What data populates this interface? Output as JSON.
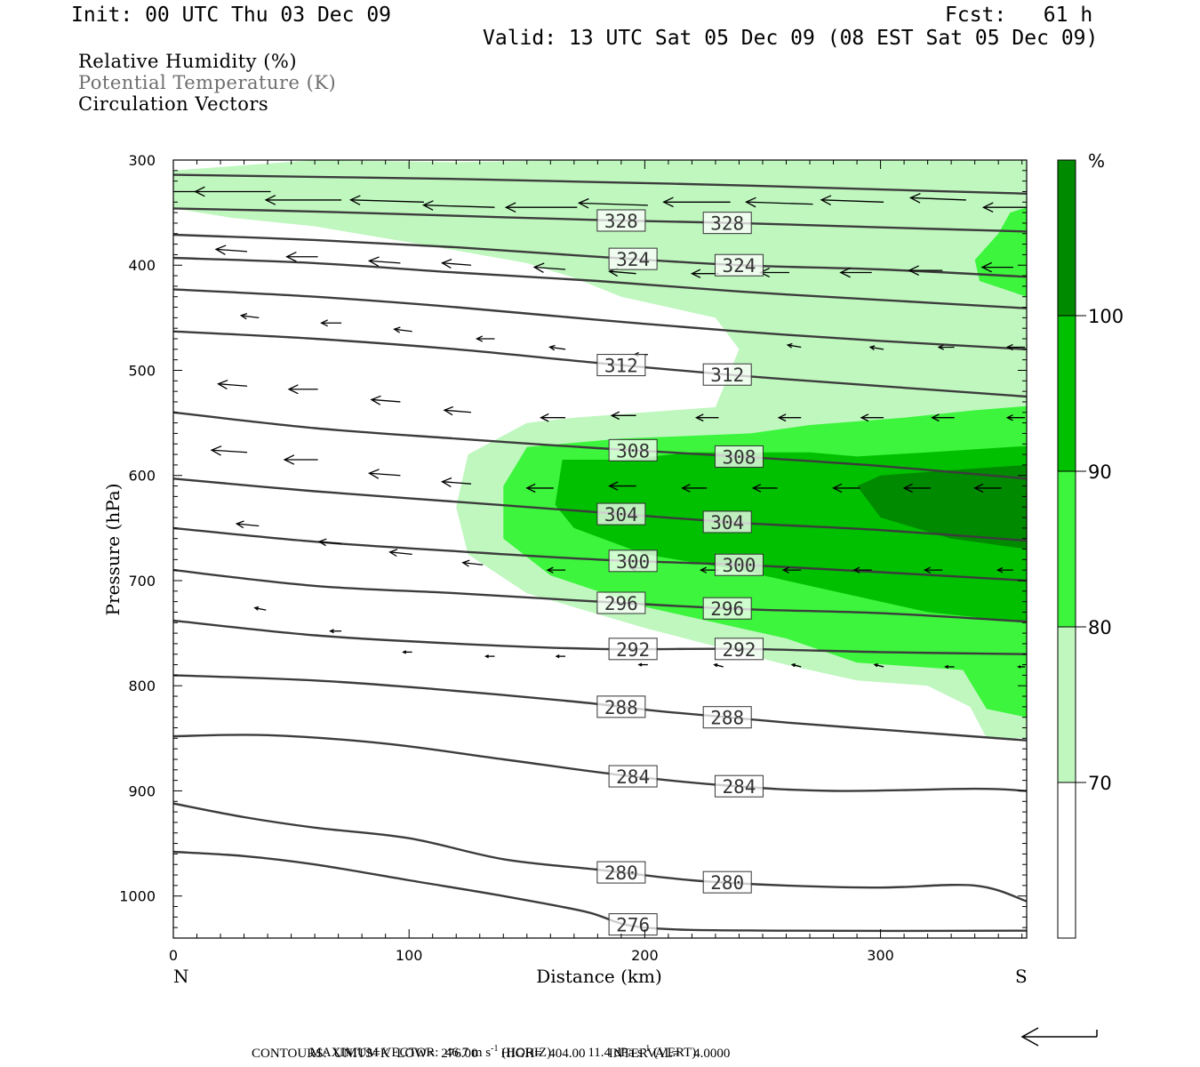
{
  "header": {
    "init": "Init: 00 UTC Thu 03 Dec 09",
    "fcst": "Fcst:   61 h",
    "valid": "Valid: 13 UTC Sat 05 Dec 09 (08 EST Sat 05 Dec 09)"
  },
  "legend": {
    "line1": "Relative Humidity (%)",
    "line2": "Potential Temperature (K)",
    "line3": "Circulation Vectors"
  },
  "colors": {
    "rh70": "#bff7bf",
    "rh80": "#3cf53c",
    "rh90": "#00c000",
    "rh100": "#008a00",
    "theta": "#3c3c3c"
  },
  "footer": {
    "max_vector_label": "MAXIMUM VECTOR:",
    "horiz": "46.7 m s",
    "horiz_unit": "(HORIZ)",
    "vert": "11.4 dPa s",
    "vert_unit": "(VERT)",
    "exp": "-1",
    "contours": "CONTOURS:  UNITS=K  LOW=  276.00       HIGH=  404.00       INTERVAL=    4.0000"
  },
  "chart_data": {
    "type": "cross-section",
    "xlabel": "Distance (km)",
    "ylabel": "Pressure (hPa)",
    "x_end_left": "N",
    "x_end_right": "S",
    "xlim": [
      0,
      362
    ],
    "ylim": [
      1040,
      300
    ],
    "x_ticks": [
      0,
      100,
      200,
      300
    ],
    "y_ticks": [
      300,
      400,
      500,
      600,
      700,
      800,
      900,
      1000
    ],
    "colorbar": {
      "unit": "%",
      "levels": [
        "70",
        "80",
        "90",
        "100"
      ]
    },
    "theta_isentropes": [
      {
        "level": 276,
        "label": "276",
        "points": [
          [
            0,
            958
          ],
          [
            30,
            962
          ],
          [
            60,
            970
          ],
          [
            100,
            985
          ],
          [
            140,
            1000
          ],
          [
            175,
            1015
          ],
          [
            200,
            1030
          ],
          [
            260,
            1033
          ],
          [
            362,
            1033
          ]
        ]
      },
      {
        "level": 280,
        "label": "280",
        "points": [
          [
            0,
            912
          ],
          [
            30,
            925
          ],
          [
            60,
            935
          ],
          [
            100,
            945
          ],
          [
            140,
            965
          ],
          [
            180,
            975
          ],
          [
            220,
            985
          ],
          [
            260,
            990
          ],
          [
            300,
            992
          ],
          [
            340,
            990
          ],
          [
            362,
            1005
          ]
        ]
      },
      {
        "level": 284,
        "label": "284",
        "points": [
          [
            0,
            848
          ],
          [
            40,
            847
          ],
          [
            90,
            855
          ],
          [
            140,
            870
          ],
          [
            190,
            885
          ],
          [
            235,
            895
          ],
          [
            280,
            900
          ],
          [
            340,
            898
          ],
          [
            362,
            900
          ]
        ]
      },
      {
        "level": 288,
        "label": "288",
        "points": [
          [
            0,
            790
          ],
          [
            60,
            795
          ],
          [
            110,
            803
          ],
          [
            170,
            815
          ],
          [
            210,
            825
          ],
          [
            260,
            835
          ],
          [
            320,
            845
          ],
          [
            362,
            852
          ]
        ]
      },
      {
        "level": 292,
        "label": "292",
        "points": [
          [
            0,
            738
          ],
          [
            60,
            752
          ],
          [
            120,
            760
          ],
          [
            180,
            765
          ],
          [
            240,
            765
          ],
          [
            300,
            768
          ],
          [
            362,
            770
          ]
        ]
      },
      {
        "level": 296,
        "label": "296",
        "points": [
          [
            0,
            690
          ],
          [
            60,
            705
          ],
          [
            120,
            712
          ],
          [
            180,
            720
          ],
          [
            240,
            727
          ],
          [
            300,
            731
          ],
          [
            362,
            739
          ]
        ]
      },
      {
        "level": 300,
        "label": "300",
        "points": [
          [
            0,
            650
          ],
          [
            60,
            663
          ],
          [
            120,
            672
          ],
          [
            180,
            680
          ],
          [
            240,
            685
          ],
          [
            300,
            692
          ],
          [
            362,
            700
          ]
        ]
      },
      {
        "level": 304,
        "label": "304",
        "points": [
          [
            0,
            603
          ],
          [
            60,
            615
          ],
          [
            120,
            625
          ],
          [
            180,
            635
          ],
          [
            240,
            645
          ],
          [
            300,
            652
          ],
          [
            362,
            662
          ]
        ]
      },
      {
        "level": 308,
        "label": "308",
        "points": [
          [
            0,
            540
          ],
          [
            60,
            555
          ],
          [
            120,
            565
          ],
          [
            180,
            574
          ],
          [
            240,
            582
          ],
          [
            300,
            591
          ],
          [
            362,
            603
          ]
        ]
      },
      {
        "level": 312,
        "label": "312",
        "points": [
          [
            0,
            463
          ],
          [
            60,
            470
          ],
          [
            120,
            480
          ],
          [
            180,
            493
          ],
          [
            240,
            505
          ],
          [
            300,
            515
          ],
          [
            362,
            525
          ]
        ]
      },
      {
        "level": 316,
        "label": "",
        "points": [
          [
            0,
            423
          ],
          [
            60,
            430
          ],
          [
            120,
            440
          ],
          [
            180,
            452
          ],
          [
            240,
            463
          ],
          [
            300,
            472
          ],
          [
            362,
            480
          ]
        ]
      },
      {
        "level": 320,
        "label": "",
        "points": [
          [
            0,
            393
          ],
          [
            60,
            398
          ],
          [
            120,
            407
          ],
          [
            180,
            415
          ],
          [
            240,
            425
          ],
          [
            300,
            433
          ],
          [
            362,
            441
          ]
        ]
      },
      {
        "level": 324,
        "label": "324",
        "points": [
          [
            0,
            371
          ],
          [
            60,
            376
          ],
          [
            120,
            383
          ],
          [
            180,
            392
          ],
          [
            240,
            400
          ],
          [
            300,
            404
          ],
          [
            362,
            411
          ]
        ]
      },
      {
        "level": 328,
        "label": "328",
        "points": [
          [
            0,
            346
          ],
          [
            60,
            349
          ],
          [
            120,
            353
          ],
          [
            180,
            357
          ],
          [
            240,
            360
          ],
          [
            300,
            364
          ],
          [
            362,
            368
          ]
        ]
      },
      {
        "level": 332,
        "label": "",
        "points": [
          [
            0,
            314
          ],
          [
            60,
            316
          ],
          [
            120,
            318
          ],
          [
            180,
            321
          ],
          [
            240,
            324
          ],
          [
            300,
            328
          ],
          [
            362,
            332
          ]
        ]
      }
    ],
    "rh_regions": [
      {
        "level": "70",
        "points": [
          [
            0,
            310
          ],
          [
            60,
            300
          ],
          [
            120,
            302
          ],
          [
            170,
            300
          ],
          [
            200,
            300
          ],
          [
            362,
            300
          ],
          [
            362,
            850
          ],
          [
            345,
            850
          ],
          [
            338,
            820
          ],
          [
            320,
            800
          ],
          [
            290,
            795
          ],
          [
            260,
            780
          ],
          [
            200,
            745
          ],
          [
            150,
            712
          ],
          [
            125,
            675
          ],
          [
            120,
            630
          ],
          [
            125,
            580
          ],
          [
            150,
            550
          ],
          [
            170,
            545
          ],
          [
            200,
            540
          ],
          [
            230,
            535
          ],
          [
            240,
            480
          ],
          [
            230,
            450
          ],
          [
            210,
            440
          ],
          [
            190,
            430
          ],
          [
            170,
            412
          ],
          [
            150,
            398
          ],
          [
            110,
            382
          ],
          [
            60,
            363
          ],
          [
            25,
            355
          ],
          [
            0,
            346
          ]
        ]
      },
      {
        "level": "80",
        "points": [
          [
            362,
            430
          ],
          [
            342,
            415
          ],
          [
            340,
            395
          ],
          [
            350,
            370
          ],
          [
            355,
            350
          ],
          [
            362,
            345
          ],
          [
            362,
            830
          ],
          [
            345,
            822
          ],
          [
            335,
            785
          ],
          [
            290,
            778
          ],
          [
            260,
            755
          ],
          [
            200,
            725
          ],
          [
            160,
            695
          ],
          [
            140,
            660
          ],
          [
            140,
            610
          ],
          [
            150,
            573
          ],
          [
            190,
            565
          ],
          [
            245,
            560
          ],
          [
            270,
            552
          ],
          [
            310,
            545
          ],
          [
            340,
            538
          ],
          [
            362,
            534
          ]
        ]
      },
      {
        "level": "90",
        "points": [
          [
            362,
            572
          ],
          [
            320,
            578
          ],
          [
            290,
            582
          ],
          [
            270,
            578
          ],
          [
            250,
            578
          ],
          [
            220,
            578
          ],
          [
            190,
            585
          ],
          [
            165,
            585
          ],
          [
            162,
            628
          ],
          [
            170,
            650
          ],
          [
            200,
            675
          ],
          [
            240,
            690
          ],
          [
            280,
            710
          ],
          [
            320,
            730
          ],
          [
            362,
            740
          ]
        ]
      },
      {
        "level": "100",
        "points": [
          [
            362,
            590
          ],
          [
            330,
            595
          ],
          [
            300,
            600
          ],
          [
            290,
            610
          ],
          [
            300,
            640
          ],
          [
            330,
            660
          ],
          [
            362,
            670
          ]
        ]
      }
    ],
    "vectors_uv": [
      [
        0,
        330,
        -34,
        0
      ],
      [
        30,
        330,
        -34,
        0
      ],
      [
        60,
        338,
        -34,
        0
      ],
      [
        95,
        340,
        -33,
        -1
      ],
      [
        125,
        345,
        -32,
        -1
      ],
      [
        160,
        345,
        -32,
        0
      ],
      [
        190,
        343,
        -31,
        -1
      ],
      [
        225,
        340,
        -30,
        0
      ],
      [
        260,
        342,
        -30,
        -1
      ],
      [
        290,
        340,
        -28,
        -1
      ],
      [
        325,
        338,
        -25,
        -1
      ],
      [
        355,
        345,
        -24,
        0
      ],
      [
        20,
        387,
        -14,
        -1
      ],
      [
        50,
        392,
        -14,
        0
      ],
      [
        85,
        398,
        -14,
        -1
      ],
      [
        115,
        400,
        -13,
        -1
      ],
      [
        155,
        404,
        -14,
        -1
      ],
      [
        185,
        408,
        -12,
        -1
      ],
      [
        220,
        408,
        -12,
        0
      ],
      [
        250,
        407,
        -13,
        0
      ],
      [
        285,
        407,
        -14,
        0
      ],
      [
        315,
        405,
        -15,
        0
      ],
      [
        345,
        402,
        -14,
        0
      ],
      [
        25,
        450,
        -8,
        -1
      ],
      [
        60,
        455,
        -9,
        0
      ],
      [
        90,
        463,
        -8,
        -1
      ],
      [
        125,
        470,
        -8,
        0
      ],
      [
        155,
        480,
        -7,
        -1
      ],
      [
        190,
        485,
        -6,
        0
      ],
      [
        255,
        478,
        -6,
        -1
      ],
      [
        290,
        480,
        -6,
        -1
      ],
      [
        320,
        478,
        -7,
        0
      ],
      [
        350,
        478,
        -8,
        0
      ],
      [
        20,
        515,
        -13,
        -1
      ],
      [
        50,
        518,
        -13,
        0
      ],
      [
        85,
        530,
        -13,
        -1
      ],
      [
        115,
        540,
        -12,
        -1
      ],
      [
        155,
        545,
        -11,
        0
      ],
      [
        185,
        543,
        -11,
        0
      ],
      [
        220,
        545,
        -10,
        0
      ],
      [
        255,
        545,
        -10,
        0
      ],
      [
        290,
        545,
        -10,
        0
      ],
      [
        320,
        545,
        -10,
        0
      ],
      [
        350,
        545,
        -8,
        0
      ],
      [
        20,
        578,
        -16,
        -1
      ],
      [
        50,
        585,
        -15,
        0
      ],
      [
        85,
        600,
        -14,
        -1
      ],
      [
        115,
        608,
        -13,
        -1
      ],
      [
        150,
        612,
        -12,
        0
      ],
      [
        185,
        610,
        -12,
        0
      ],
      [
        215,
        612,
        -11,
        0
      ],
      [
        245,
        612,
        -11,
        0
      ],
      [
        280,
        612,
        -12,
        0
      ],
      [
        310,
        612,
        -12,
        0
      ],
      [
        340,
        612,
        -12,
        0
      ],
      [
        25,
        648,
        -10,
        -1
      ],
      [
        60,
        665,
        -10,
        -1
      ],
      [
        90,
        675,
        -10,
        -1
      ],
      [
        120,
        685,
        -9,
        -1
      ],
      [
        155,
        690,
        -8,
        0
      ],
      [
        190,
        688,
        -8,
        0
      ],
      [
        220,
        690,
        -8,
        0
      ],
      [
        255,
        690,
        -8,
        0
      ],
      [
        285,
        690,
        -8,
        0
      ],
      [
        315,
        690,
        -8,
        0
      ],
      [
        345,
        690,
        -7,
        0
      ],
      [
        28,
        728,
        -5,
        -1
      ],
      [
        60,
        748,
        -5,
        0
      ],
      [
        90,
        768,
        -4,
        0
      ],
      [
        125,
        772,
        -4,
        0
      ],
      [
        155,
        772,
        -4,
        0
      ],
      [
        190,
        780,
        -4,
        0
      ],
      [
        222,
        782,
        -4,
        -1
      ],
      [
        255,
        782,
        -4,
        -1
      ],
      [
        290,
        782,
        -4,
        -1
      ],
      [
        320,
        782,
        -4,
        0
      ],
      [
        350,
        782,
        -3,
        0
      ]
    ]
  }
}
